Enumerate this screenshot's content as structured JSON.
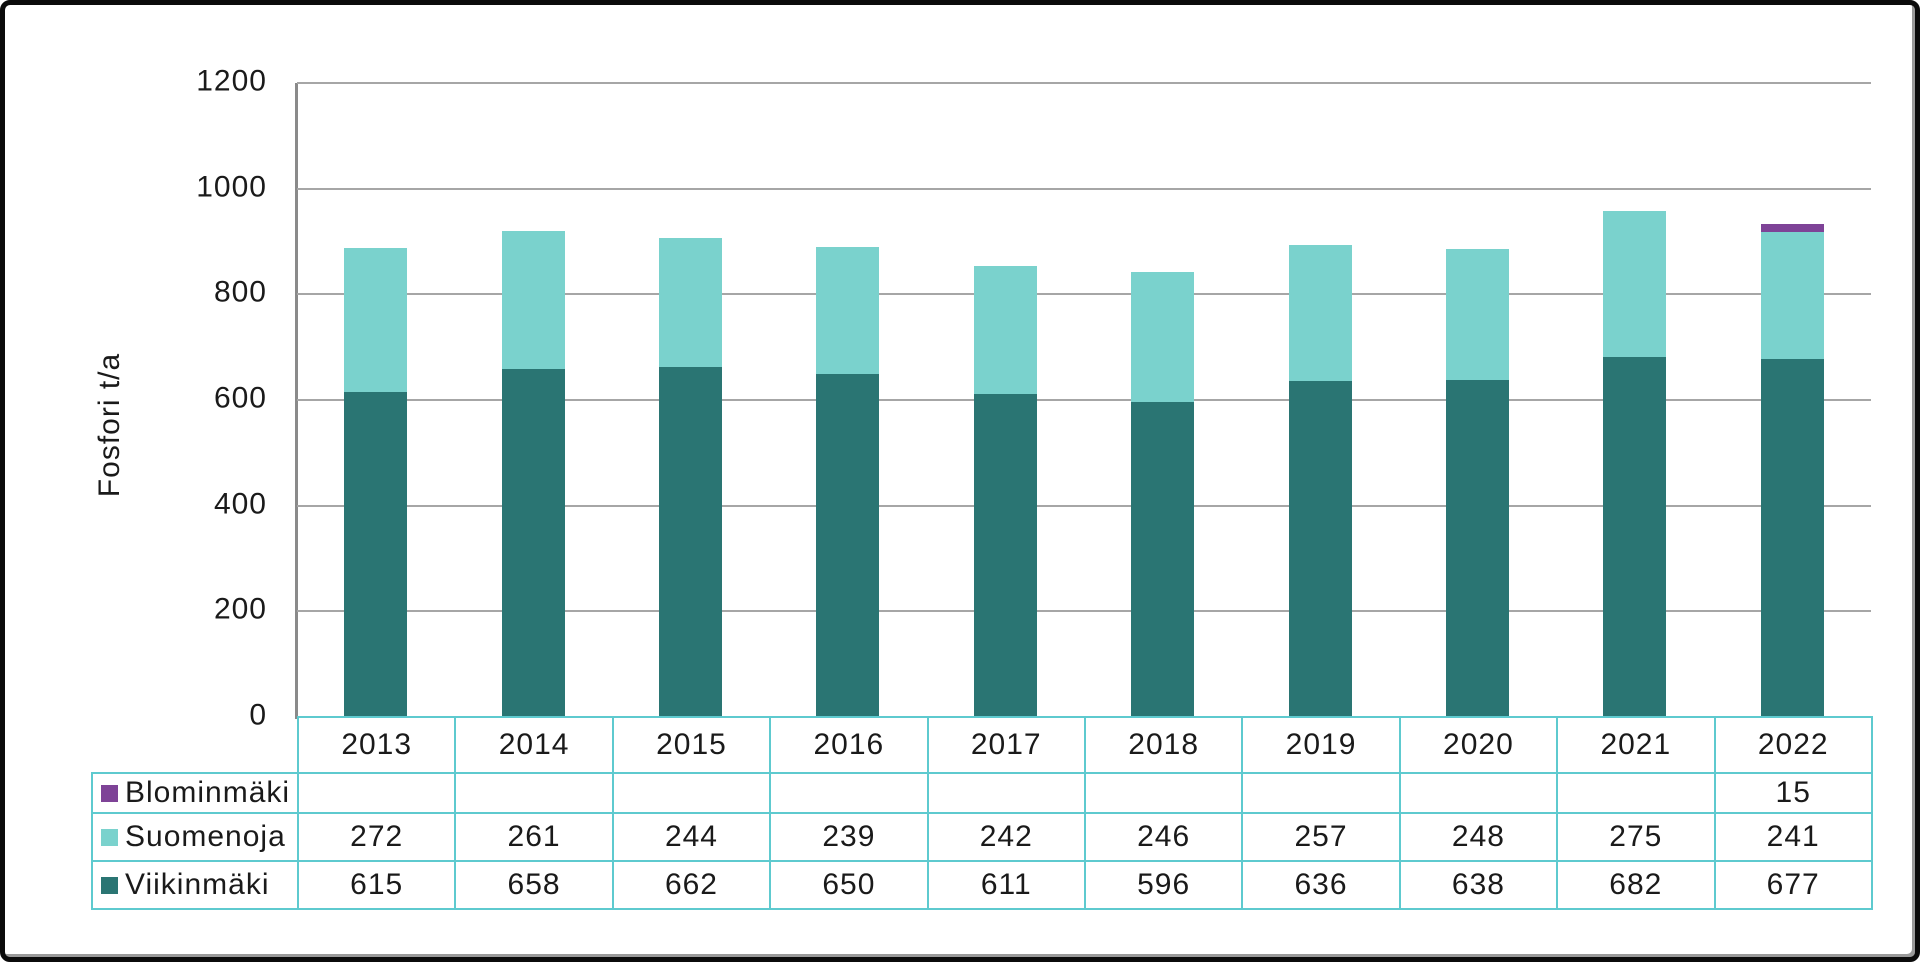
{
  "chart_data": {
    "type": "bar",
    "stacked": true,
    "title": "",
    "ylabel": "Fosfori t/a",
    "xlabel": "",
    "ylim": [
      0,
      1200
    ],
    "ytick_step": 200,
    "grid": true,
    "legend_position": "table-below",
    "categories": [
      "2013",
      "2014",
      "2015",
      "2016",
      "2017",
      "2018",
      "2019",
      "2020",
      "2021",
      "2022"
    ],
    "series": [
      {
        "name": "Blominmäki",
        "color": "#7e4397",
        "values": [
          null,
          null,
          null,
          null,
          null,
          null,
          null,
          null,
          null,
          15
        ]
      },
      {
        "name": "Suomenoja",
        "color": "#7ad2cd",
        "values": [
          272,
          261,
          244,
          239,
          242,
          246,
          257,
          248,
          275,
          241
        ]
      },
      {
        "name": "Viikinmäki",
        "color": "#2a7573",
        "values": [
          615,
          658,
          662,
          650,
          611,
          596,
          636,
          638,
          682,
          677
        ]
      }
    ],
    "stack_order_bottom_to_top": [
      "Viikinmäki",
      "Suomenoja",
      "Blominmäki"
    ],
    "colors": {
      "gridline": "#a6a6a6",
      "axis_line": "#8a8a8a",
      "table_border": "#5ecacf",
      "text": "#1a1a1a",
      "background": "#ffffff",
      "frame_border": "#0b0b0b"
    }
  }
}
